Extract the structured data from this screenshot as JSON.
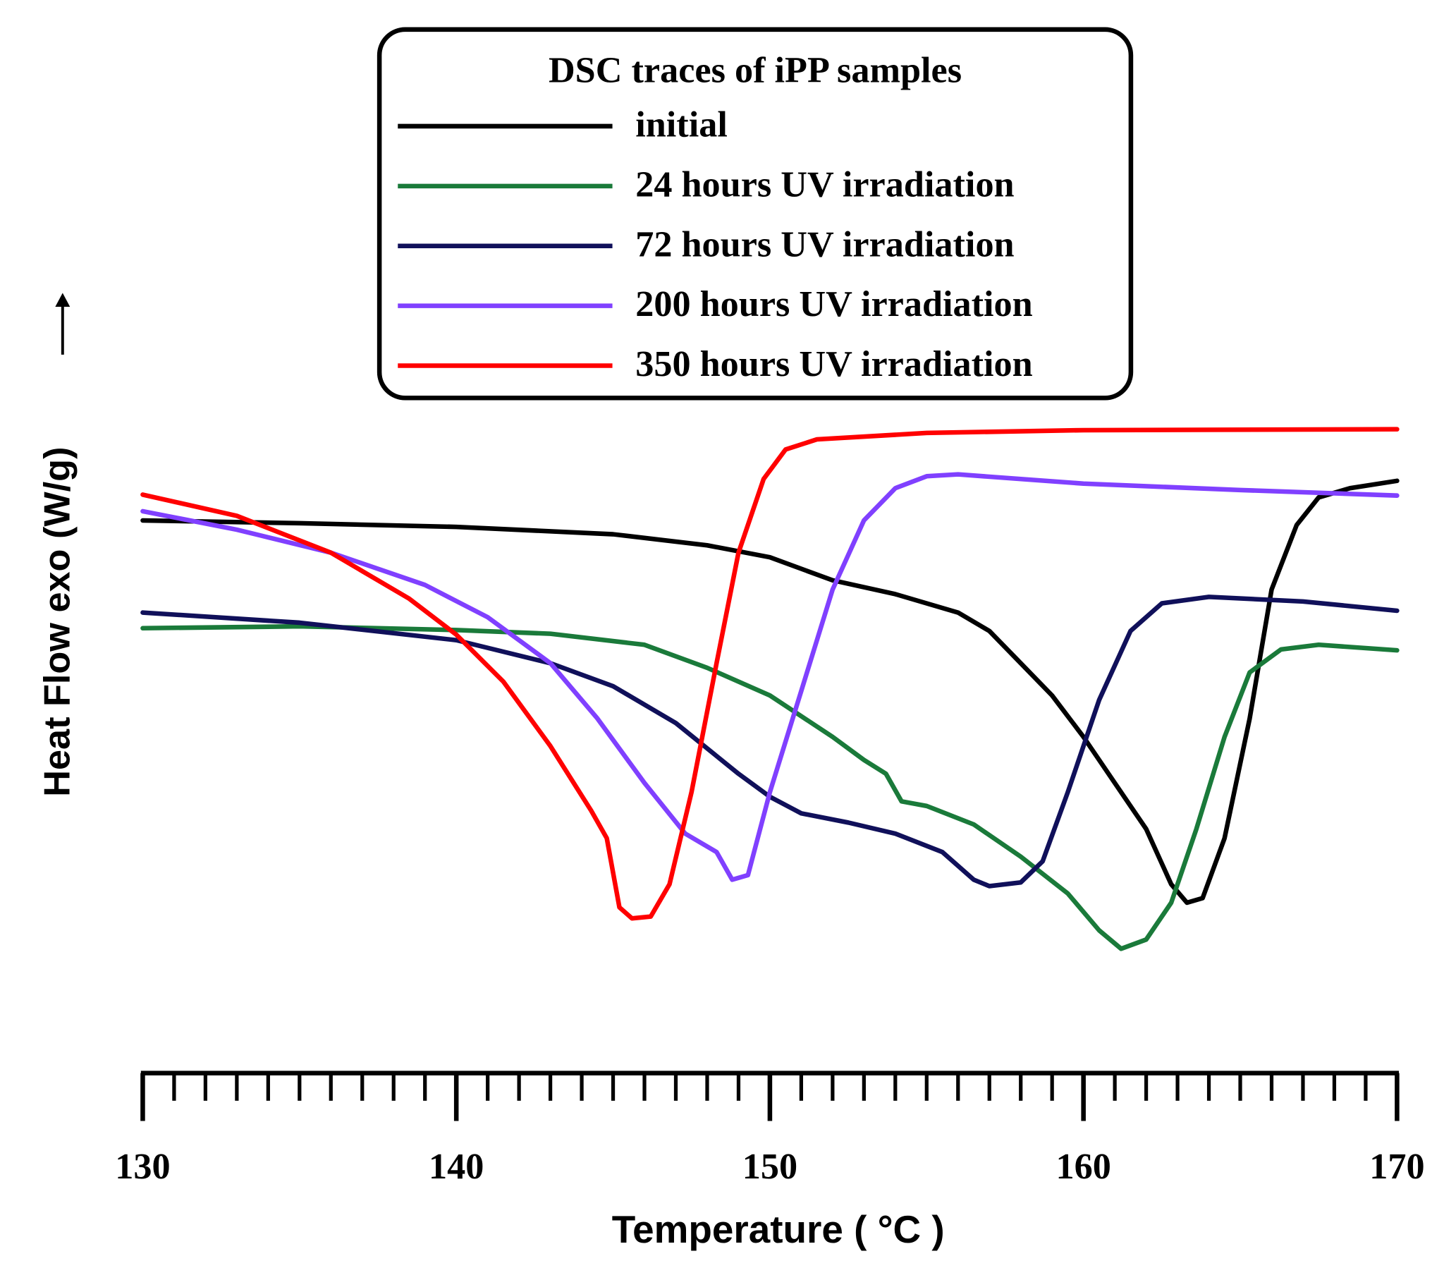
{
  "chart_data": {
    "type": "line",
    "legend_title": "DSC traces of iPP samples",
    "xlabel": "Temperature   ( °C )",
    "ylabel": "Heat Flow exo  (W/g)",
    "xlim": [
      130,
      170
    ],
    "xticks": [
      130,
      140,
      150,
      160,
      170
    ],
    "xminorticks": [
      131,
      132,
      133,
      134,
      135,
      136,
      137,
      138,
      139,
      141,
      142,
      143,
      144,
      145,
      146,
      147,
      148,
      149,
      151,
      152,
      153,
      154,
      155,
      156,
      157,
      158,
      159,
      161,
      162,
      163,
      164,
      165,
      166,
      167,
      168,
      169
    ],
    "ylim": [
      0,
      70
    ],
    "legend": "top",
    "series": [
      {
        "name": "initial",
        "color": "#000000",
        "x": [
          130,
          135,
          140,
          145,
          148,
          150,
          152,
          154,
          156,
          157,
          158,
          159,
          160,
          161,
          162,
          162.8,
          163.3,
          163.8,
          164.5,
          165.3,
          166,
          166.8,
          167.5,
          168.5,
          170
        ],
        "values": [
          60.0,
          59.7,
          59.3,
          58.5,
          57.3,
          56.0,
          53.5,
          52.0,
          50.0,
          48.0,
          44.5,
          41.0,
          36.5,
          31.5,
          26.5,
          20.5,
          18.5,
          19.0,
          25.5,
          38.5,
          52.5,
          59.5,
          62.5,
          63.5,
          64.3
        ]
      },
      {
        "name": "24 hours UV irradiation",
        "color": "#1a7a3a",
        "x": [
          130,
          135,
          140,
          143,
          146,
          148,
          150,
          152,
          153,
          153.7,
          154.2,
          155,
          156.5,
          158,
          159.5,
          160.5,
          161.2,
          162,
          162.8,
          163.6,
          164.5,
          165.3,
          166.3,
          167.5,
          170
        ],
        "values": [
          48.3,
          48.5,
          48.1,
          47.7,
          46.5,
          44.0,
          41.0,
          36.5,
          34.0,
          32.5,
          29.5,
          29.0,
          27.0,
          23.5,
          19.5,
          15.5,
          13.5,
          14.5,
          18.5,
          26.5,
          36.5,
          43.5,
          46.0,
          46.5,
          45.9
        ]
      },
      {
        "name": "72 hours UV irradiation",
        "color": "#10105a",
        "x": [
          130,
          135,
          140,
          143,
          145,
          147,
          149,
          150,
          151,
          152.5,
          154,
          155.5,
          156.5,
          157,
          158,
          158.7,
          159.5,
          160.5,
          161.5,
          162.5,
          164,
          167,
          170
        ],
        "values": [
          50.0,
          48.9,
          47.0,
          44.5,
          42.0,
          38.0,
          32.5,
          30.0,
          28.2,
          27.2,
          26.0,
          24.0,
          21.0,
          20.3,
          20.7,
          23.0,
          30.5,
          40.5,
          48.0,
          51.0,
          51.7,
          51.2,
          50.2
        ]
      },
      {
        "name": "200 hours UV irradiation",
        "color": "#8040ff",
        "x": [
          130,
          133,
          136,
          139,
          141,
          143,
          144.5,
          146,
          147.3,
          148.3,
          148.8,
          149.3,
          150,
          151,
          152,
          153,
          154,
          155,
          156,
          160,
          165,
          170
        ],
        "values": [
          61.0,
          59.0,
          56.5,
          53.0,
          49.5,
          44.5,
          38.5,
          31.5,
          26.0,
          24.0,
          21.0,
          21.5,
          30.5,
          41.5,
          52.5,
          60.0,
          63.5,
          64.8,
          65.0,
          64.0,
          63.3,
          62.7
        ]
      },
      {
        "name": "350 hours UV irradiation",
        "color": "#ff0000",
        "x": [
          130,
          133,
          136,
          138.5,
          140,
          141.5,
          143,
          144.3,
          144.8,
          145.2,
          145.6,
          146.2,
          146.8,
          147.5,
          148.3,
          149,
          149.8,
          150.5,
          151.5,
          155,
          160,
          170
        ],
        "values": [
          62.8,
          60.5,
          56.5,
          51.5,
          47.6,
          42.5,
          35.5,
          28.5,
          25.5,
          18.0,
          16.8,
          17.0,
          20.5,
          30.5,
          44.5,
          56.5,
          64.5,
          67.7,
          68.8,
          69.5,
          69.8,
          69.9
        ]
      }
    ]
  }
}
